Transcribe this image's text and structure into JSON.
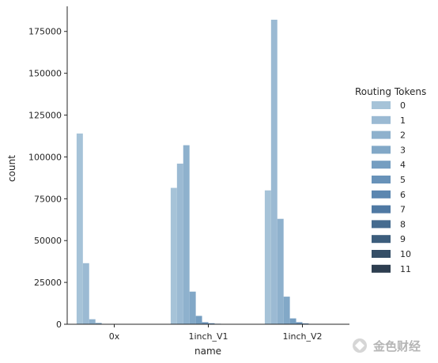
{
  "chart_data": {
    "type": "bar",
    "categories": [
      "0x",
      "1inch_V1",
      "1inch_V2"
    ],
    "xlabel": "name",
    "ylabel": "count",
    "ylim": [
      0,
      190000
    ],
    "yticks": [
      0,
      25000,
      50000,
      75000,
      100000,
      125000,
      150000,
      175000
    ],
    "legend": {
      "title": "Routing Tokens",
      "placement": "right"
    },
    "series": [
      {
        "name": "0",
        "color": "#a6c3d8",
        "values": [
          114000,
          81500,
          80000
        ]
      },
      {
        "name": "1",
        "color": "#9bbad3",
        "values": [
          36500,
          96000,
          182000
        ]
      },
      {
        "name": "2",
        "color": "#8eb1cd",
        "values": [
          3000,
          107000,
          63000
        ]
      },
      {
        "name": "3",
        "color": "#82a8c7",
        "values": [
          800,
          19500,
          16500
        ]
      },
      {
        "name": "4",
        "color": "#759ec1",
        "values": [
          200,
          5000,
          3500
        ]
      },
      {
        "name": "5",
        "color": "#6892b9",
        "values": [
          100,
          1200,
          1200
        ]
      },
      {
        "name": "6",
        "color": "#5b86b0",
        "values": [
          50,
          600,
          500
        ]
      },
      {
        "name": "7",
        "color": "#4f79a3",
        "values": [
          0,
          300,
          200
        ]
      },
      {
        "name": "8",
        "color": "#456b8f",
        "values": [
          0,
          150,
          100
        ]
      },
      {
        "name": "9",
        "color": "#3c5d7c",
        "values": [
          0,
          80,
          50
        ]
      },
      {
        "name": "10",
        "color": "#344e67",
        "values": [
          0,
          40,
          20
        ]
      },
      {
        "name": "11",
        "color": "#2d3e50",
        "values": [
          0,
          20,
          10
        ]
      }
    ]
  },
  "watermark": {
    "text": "金色财经",
    "icon": "gold-coin-logo-icon"
  }
}
